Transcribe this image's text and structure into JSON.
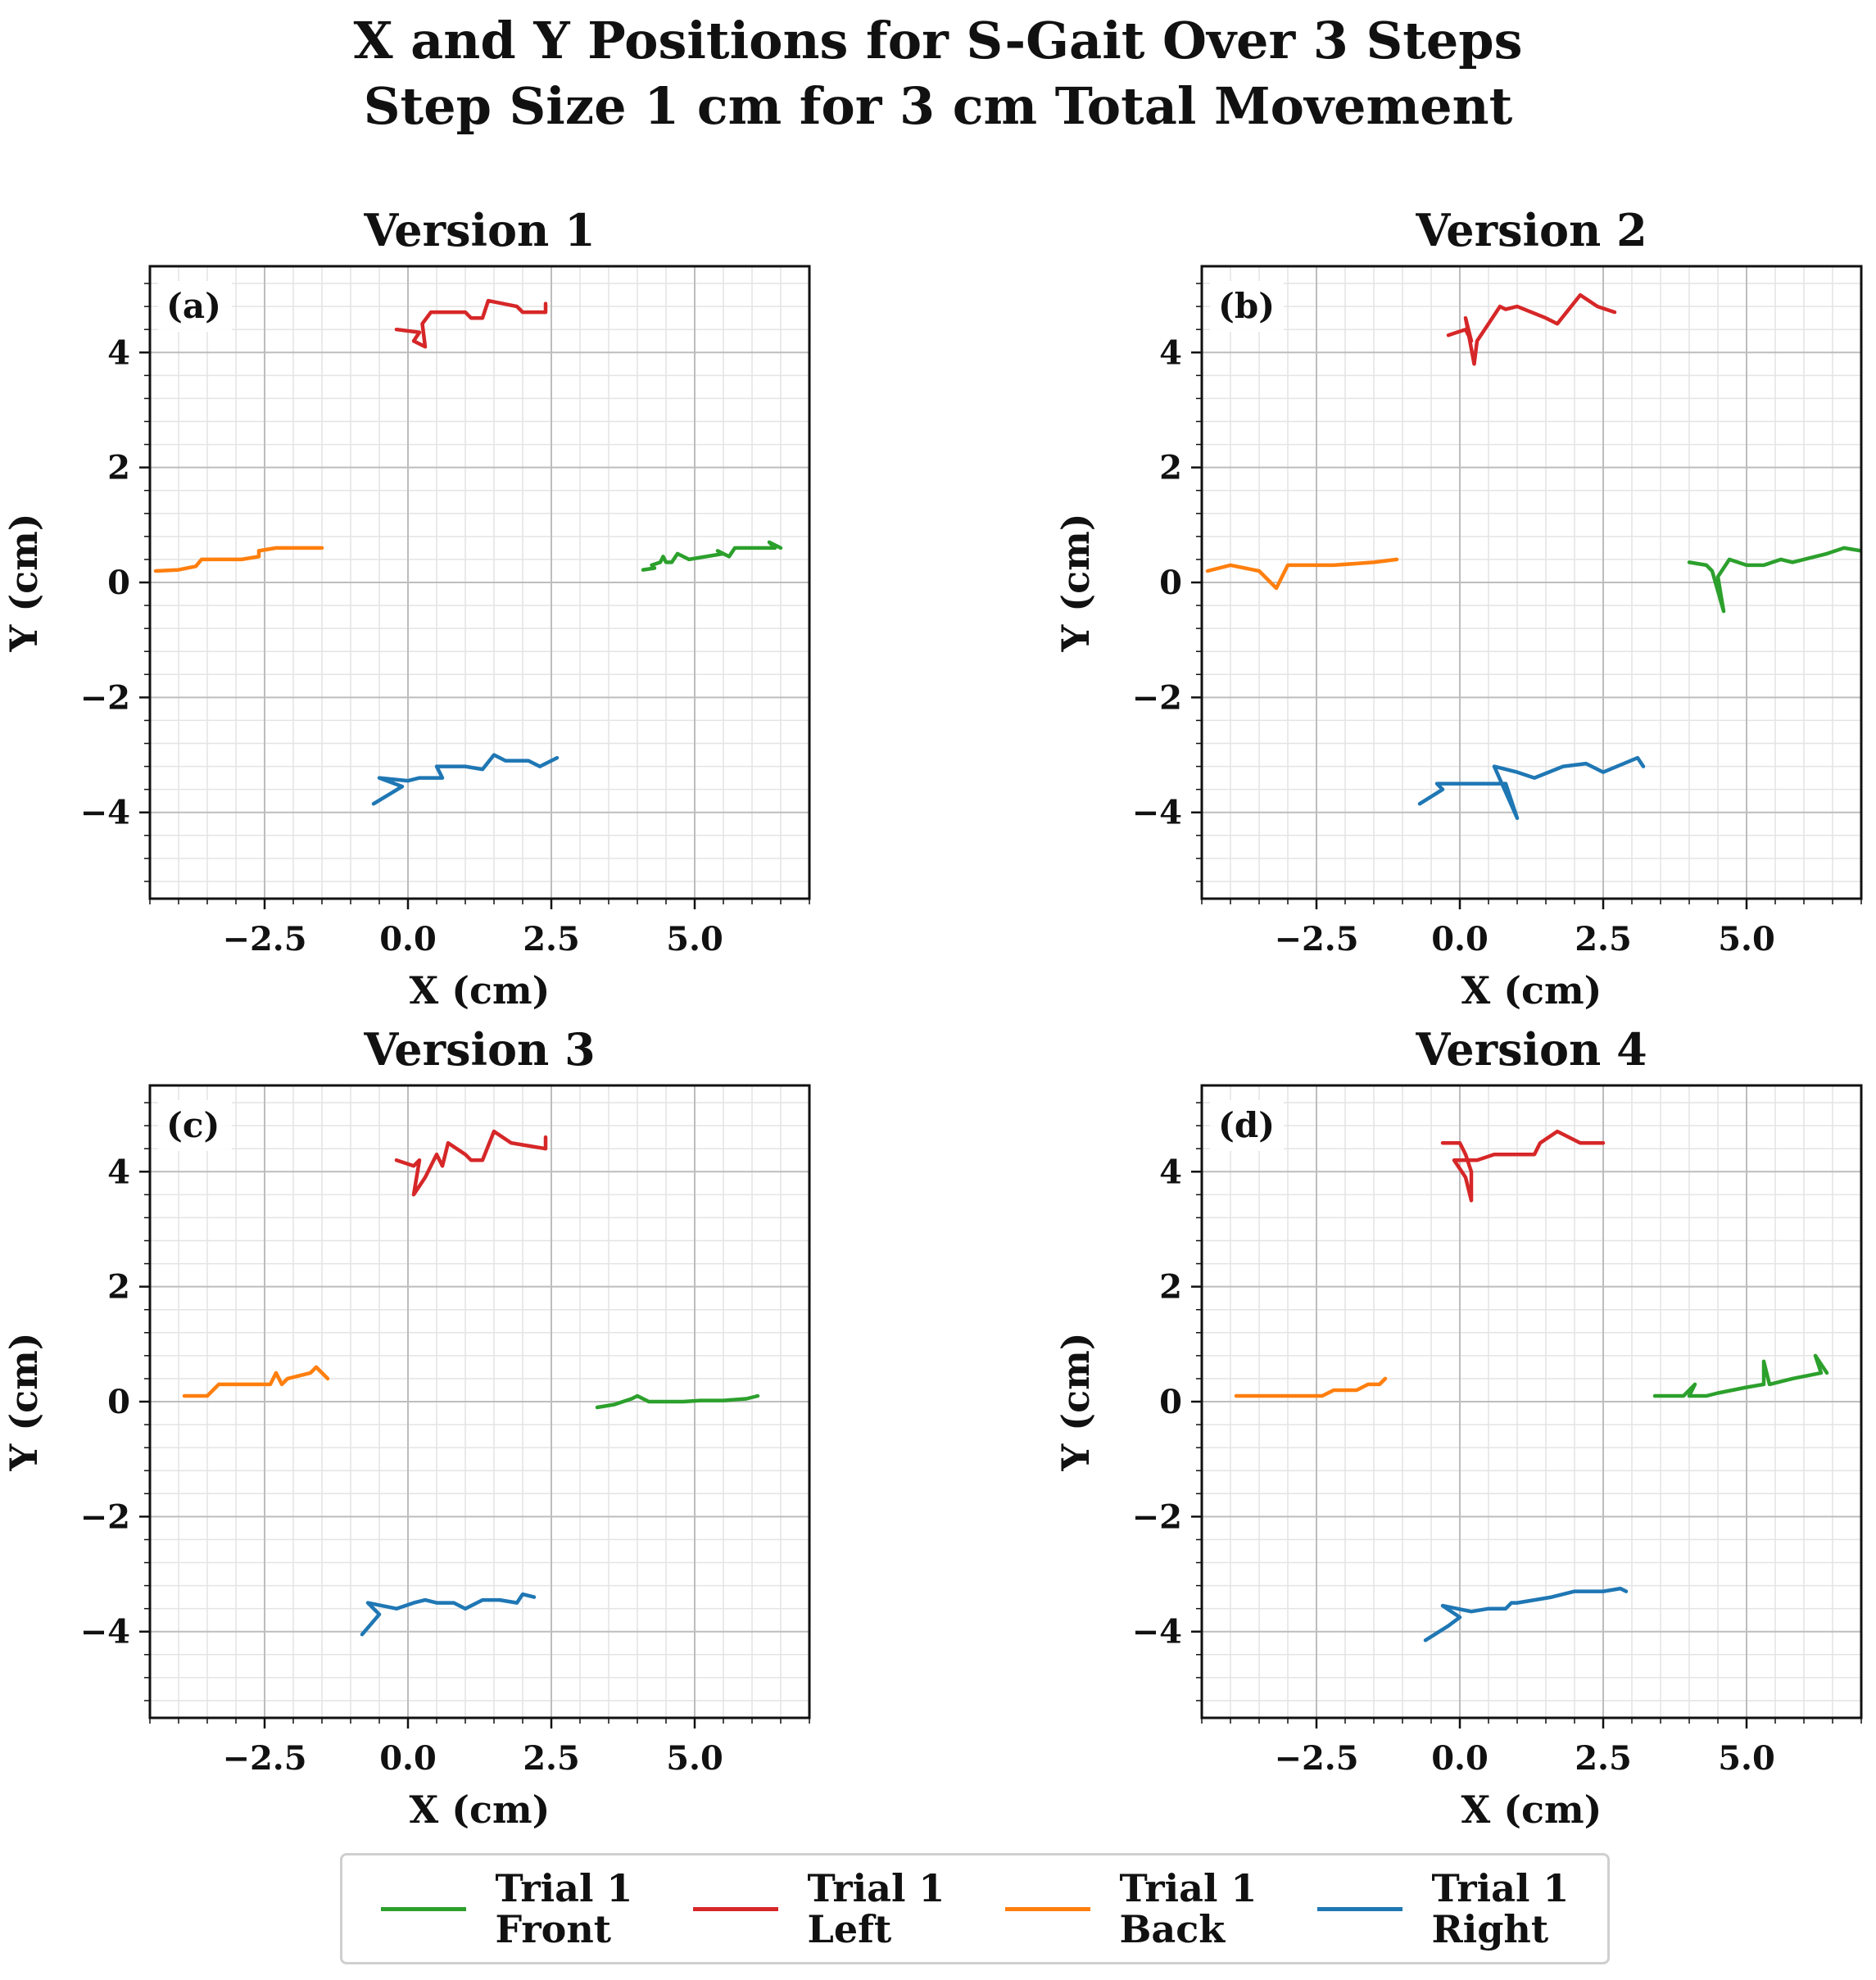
{
  "title_lines": [
    "X and Y Positions for S-Gait Over 3 Steps",
    "Step Size 1 cm for 3 cm Total Movement"
  ],
  "colors": {
    "front": "#2ca02c",
    "left": "#d62728",
    "back": "#ff7f0e",
    "right": "#1f77b4"
  },
  "legend": [
    {
      "line1": "Trial 1",
      "line2": "Front",
      "color": "#2ca02c"
    },
    {
      "line1": "Trial 1",
      "line2": "Left",
      "color": "#d62728"
    },
    {
      "line1": "Trial 1",
      "line2": "Back",
      "color": "#ff7f0e"
    },
    {
      "line1": "Trial 1",
      "line2": "Right",
      "color": "#1f77b4"
    }
  ],
  "chart_data": [
    {
      "type": "line",
      "title": "Version 1",
      "panel_label": "(a)",
      "xlabel": "X (cm)",
      "ylabel": "Y (cm)",
      "xlim": [
        -4.5,
        7.0
      ],
      "ylim": [
        -5.5,
        5.5
      ],
      "xticks": [
        -2.5,
        0.0,
        2.5,
        5.0
      ],
      "xtick_labels": [
        "−2.5",
        "0.0",
        "2.5",
        "5.0"
      ],
      "yticks": [
        -4,
        -2,
        0,
        2,
        4
      ],
      "ytick_labels": [
        "−4",
        "−2",
        "0",
        "2",
        "4"
      ],
      "grid": true,
      "series": [
        {
          "name": "Trial 1 Front",
          "color": "#2ca02c",
          "points": [
            [
              4.1,
              0.22
            ],
            [
              4.3,
              0.25
            ],
            [
              4.25,
              0.3
            ],
            [
              4.4,
              0.35
            ],
            [
              4.45,
              0.45
            ],
            [
              4.5,
              0.35
            ],
            [
              4.6,
              0.35
            ],
            [
              4.7,
              0.5
            ],
            [
              4.9,
              0.4
            ],
            [
              5.2,
              0.45
            ],
            [
              5.5,
              0.5
            ],
            [
              5.4,
              0.55
            ],
            [
              5.6,
              0.45
            ],
            [
              5.7,
              0.6
            ],
            [
              6.1,
              0.6
            ],
            [
              6.4,
              0.6
            ],
            [
              6.3,
              0.7
            ],
            [
              6.5,
              0.6
            ]
          ]
        },
        {
          "name": "Trial 1 Left",
          "color": "#d62728",
          "points": [
            [
              -0.2,
              4.4
            ],
            [
              0.2,
              4.35
            ],
            [
              0.1,
              4.2
            ],
            [
              0.3,
              4.1
            ],
            [
              0.25,
              4.5
            ],
            [
              0.4,
              4.7
            ],
            [
              1.0,
              4.7
            ],
            [
              1.1,
              4.6
            ],
            [
              1.3,
              4.6
            ],
            [
              1.4,
              4.9
            ],
            [
              1.9,
              4.8
            ],
            [
              2.0,
              4.7
            ],
            [
              2.2,
              4.7
            ],
            [
              2.4,
              4.7
            ],
            [
              2.4,
              4.85
            ]
          ]
        },
        {
          "name": "Trial 1 Back",
          "color": "#ff7f0e",
          "points": [
            [
              -4.4,
              0.2
            ],
            [
              -4.0,
              0.22
            ],
            [
              -3.7,
              0.28
            ],
            [
              -3.6,
              0.4
            ],
            [
              -3.3,
              0.4
            ],
            [
              -2.9,
              0.4
            ],
            [
              -2.6,
              0.45
            ],
            [
              -2.6,
              0.55
            ],
            [
              -2.3,
              0.6
            ],
            [
              -2.0,
              0.6
            ],
            [
              -1.5,
              0.6
            ]
          ]
        },
        {
          "name": "Trial 1 Right",
          "color": "#1f77b4",
          "points": [
            [
              -0.6,
              -3.85
            ],
            [
              -0.1,
              -3.55
            ],
            [
              -0.5,
              -3.4
            ],
            [
              0.0,
              -3.45
            ],
            [
              0.2,
              -3.4
            ],
            [
              0.6,
              -3.4
            ],
            [
              0.5,
              -3.2
            ],
            [
              0.6,
              -3.2
            ],
            [
              1.0,
              -3.2
            ],
            [
              1.3,
              -3.25
            ],
            [
              1.5,
              -3.0
            ],
            [
              1.7,
              -3.1
            ],
            [
              2.1,
              -3.1
            ],
            [
              2.3,
              -3.2
            ],
            [
              2.6,
              -3.05
            ]
          ]
        }
      ]
    },
    {
      "type": "line",
      "title": "Version 2",
      "panel_label": "(b)",
      "xlabel": "X (cm)",
      "ylabel": "Y (cm)",
      "xlim": [
        -4.5,
        7.0
      ],
      "ylim": [
        -5.5,
        5.5
      ],
      "xticks": [
        -2.5,
        0.0,
        2.5,
        5.0
      ],
      "xtick_labels": [
        "−2.5",
        "0.0",
        "2.5",
        "5.0"
      ],
      "yticks": [
        -4,
        -2,
        0,
        2,
        4
      ],
      "ytick_labels": [
        "−4",
        "−2",
        "0",
        "2",
        "4"
      ],
      "grid": true,
      "series": [
        {
          "name": "Trial 1 Front",
          "color": "#2ca02c",
          "points": [
            [
              4.0,
              0.35
            ],
            [
              4.3,
              0.3
            ],
            [
              4.4,
              0.2
            ],
            [
              4.6,
              -0.5
            ],
            [
              4.5,
              0.1
            ],
            [
              4.7,
              0.4
            ],
            [
              5.0,
              0.3
            ],
            [
              5.3,
              0.3
            ],
            [
              5.6,
              0.4
            ],
            [
              5.8,
              0.35
            ],
            [
              6.0,
              0.4
            ],
            [
              6.4,
              0.5
            ],
            [
              6.7,
              0.6
            ],
            [
              7.0,
              0.55
            ]
          ]
        },
        {
          "name": "Trial 1 Left",
          "color": "#d62728",
          "points": [
            [
              -0.2,
              4.3
            ],
            [
              0.1,
              4.4
            ],
            [
              0.2,
              4.2
            ],
            [
              0.1,
              4.6
            ],
            [
              0.25,
              3.8
            ],
            [
              0.3,
              4.2
            ],
            [
              0.5,
              4.5
            ],
            [
              0.7,
              4.8
            ],
            [
              0.8,
              4.75
            ],
            [
              1.0,
              4.8
            ],
            [
              1.5,
              4.6
            ],
            [
              1.7,
              4.5
            ],
            [
              2.1,
              5.0
            ],
            [
              2.4,
              4.8
            ],
            [
              2.7,
              4.7
            ]
          ]
        },
        {
          "name": "Trial 1 Back",
          "color": "#ff7f0e",
          "points": [
            [
              -4.4,
              0.2
            ],
            [
              -4.0,
              0.3
            ],
            [
              -3.5,
              0.2
            ],
            [
              -3.2,
              -0.1
            ],
            [
              -3.0,
              0.3
            ],
            [
              -2.7,
              0.3
            ],
            [
              -2.2,
              0.3
            ],
            [
              -1.5,
              0.35
            ],
            [
              -1.1,
              0.4
            ]
          ]
        },
        {
          "name": "Trial 1 Right",
          "color": "#1f77b4",
          "points": [
            [
              -0.7,
              -3.85
            ],
            [
              -0.3,
              -3.6
            ],
            [
              -0.4,
              -3.5
            ],
            [
              0.0,
              -3.5
            ],
            [
              0.3,
              -3.5
            ],
            [
              0.6,
              -3.5
            ],
            [
              0.8,
              -3.5
            ],
            [
              1.0,
              -4.1
            ],
            [
              0.6,
              -3.2
            ],
            [
              1.0,
              -3.3
            ],
            [
              1.3,
              -3.4
            ],
            [
              1.8,
              -3.2
            ],
            [
              2.2,
              -3.15
            ],
            [
              2.5,
              -3.3
            ],
            [
              3.1,
              -3.05
            ],
            [
              3.2,
              -3.2
            ]
          ]
        }
      ]
    },
    {
      "type": "line",
      "title": "Version 3",
      "panel_label": "(c)",
      "xlabel": "X (cm)",
      "ylabel": "Y (cm)",
      "xlim": [
        -4.5,
        7.0
      ],
      "ylim": [
        -5.5,
        5.5
      ],
      "xticks": [
        -2.5,
        0.0,
        2.5,
        5.0
      ],
      "xtick_labels": [
        "−2.5",
        "0.0",
        "2.5",
        "5.0"
      ],
      "yticks": [
        -4,
        -2,
        0,
        2,
        4
      ],
      "ytick_labels": [
        "−4",
        "−2",
        "0",
        "2",
        "4"
      ],
      "grid": true,
      "series": [
        {
          "name": "Trial 1 Front",
          "color": "#2ca02c",
          "points": [
            [
              3.3,
              -0.1
            ],
            [
              3.6,
              -0.05
            ],
            [
              3.9,
              0.05
            ],
            [
              4.0,
              0.1
            ],
            [
              4.2,
              0.0
            ],
            [
              4.4,
              0.0
            ],
            [
              4.8,
              0.0
            ],
            [
              5.1,
              0.02
            ],
            [
              5.5,
              0.02
            ],
            [
              5.9,
              0.05
            ],
            [
              6.1,
              0.1
            ]
          ]
        },
        {
          "name": "Trial 1 Left",
          "color": "#d62728",
          "points": [
            [
              -0.2,
              4.2
            ],
            [
              0.1,
              4.1
            ],
            [
              0.2,
              4.2
            ],
            [
              0.1,
              3.6
            ],
            [
              0.3,
              3.9
            ],
            [
              0.4,
              4.1
            ],
            [
              0.5,
              4.3
            ],
            [
              0.6,
              4.1
            ],
            [
              0.7,
              4.5
            ],
            [
              1.0,
              4.3
            ],
            [
              1.1,
              4.2
            ],
            [
              1.3,
              4.2
            ],
            [
              1.5,
              4.7
            ],
            [
              1.8,
              4.5
            ],
            [
              2.4,
              4.4
            ],
            [
              2.4,
              4.6
            ]
          ]
        },
        {
          "name": "Trial 1 Back",
          "color": "#ff7f0e",
          "points": [
            [
              -3.9,
              0.1
            ],
            [
              -3.5,
              0.1
            ],
            [
              -3.3,
              0.3
            ],
            [
              -2.9,
              0.3
            ],
            [
              -2.4,
              0.3
            ],
            [
              -2.3,
              0.5
            ],
            [
              -2.2,
              0.3
            ],
            [
              -2.1,
              0.4
            ],
            [
              -1.7,
              0.5
            ],
            [
              -1.6,
              0.6
            ],
            [
              -1.4,
              0.4
            ]
          ]
        },
        {
          "name": "Trial 1 Right",
          "color": "#1f77b4",
          "points": [
            [
              -0.8,
              -4.05
            ],
            [
              -0.5,
              -3.7
            ],
            [
              -0.7,
              -3.5
            ],
            [
              -0.2,
              -3.6
            ],
            [
              0.1,
              -3.5
            ],
            [
              0.3,
              -3.45
            ],
            [
              0.5,
              -3.5
            ],
            [
              0.8,
              -3.5
            ],
            [
              1.0,
              -3.6
            ],
            [
              1.3,
              -3.45
            ],
            [
              1.6,
              -3.45
            ],
            [
              1.9,
              -3.5
            ],
            [
              2.0,
              -3.35
            ],
            [
              2.2,
              -3.4
            ]
          ]
        }
      ]
    },
    {
      "type": "line",
      "title": "Version 4",
      "panel_label": "(d)",
      "xlabel": "X (cm)",
      "ylabel": "Y (cm)",
      "xlim": [
        -4.5,
        7.0
      ],
      "ylim": [
        -5.5,
        5.5
      ],
      "xticks": [
        -2.5,
        0.0,
        2.5,
        5.0
      ],
      "xtick_labels": [
        "−2.5",
        "0.0",
        "2.5",
        "5.0"
      ],
      "yticks": [
        -4,
        -2,
        0,
        2,
        4
      ],
      "ytick_labels": [
        "−4",
        "−2",
        "0",
        "2",
        "4"
      ],
      "grid": true,
      "series": [
        {
          "name": "Trial 1 Front",
          "color": "#2ca02c",
          "points": [
            [
              3.4,
              0.1
            ],
            [
              3.7,
              0.1
            ],
            [
              3.9,
              0.1
            ],
            [
              4.1,
              0.3
            ],
            [
              4.0,
              0.1
            ],
            [
              4.3,
              0.1
            ],
            [
              4.5,
              0.15
            ],
            [
              5.0,
              0.25
            ],
            [
              5.3,
              0.3
            ],
            [
              5.3,
              0.7
            ],
            [
              5.4,
              0.3
            ],
            [
              5.8,
              0.4
            ],
            [
              6.3,
              0.5
            ],
            [
              6.2,
              0.8
            ],
            [
              6.4,
              0.5
            ]
          ]
        },
        {
          "name": "Trial 1 Left",
          "color": "#d62728",
          "points": [
            [
              -0.3,
              4.5
            ],
            [
              0.0,
              4.5
            ],
            [
              0.1,
              4.3
            ],
            [
              0.2,
              4.0
            ],
            [
              0.2,
              3.5
            ],
            [
              0.1,
              3.9
            ],
            [
              -0.1,
              4.2
            ],
            [
              0.3,
              4.2
            ],
            [
              0.6,
              4.3
            ],
            [
              0.9,
              4.3
            ],
            [
              1.3,
              4.3
            ],
            [
              1.4,
              4.5
            ],
            [
              1.7,
              4.7
            ],
            [
              2.1,
              4.5
            ],
            [
              2.5,
              4.5
            ]
          ]
        },
        {
          "name": "Trial 1 Back",
          "color": "#ff7f0e",
          "points": [
            [
              -3.9,
              0.1
            ],
            [
              -3.5,
              0.1
            ],
            [
              -2.9,
              0.1
            ],
            [
              -2.4,
              0.1
            ],
            [
              -2.2,
              0.2
            ],
            [
              -1.8,
              0.2
            ],
            [
              -1.6,
              0.3
            ],
            [
              -1.4,
              0.3
            ],
            [
              -1.3,
              0.4
            ]
          ]
        },
        {
          "name": "Trial 1 Right",
          "color": "#1f77b4",
          "points": [
            [
              -0.6,
              -4.15
            ],
            [
              -0.2,
              -3.9
            ],
            [
              0.0,
              -3.75
            ],
            [
              -0.3,
              -3.55
            ],
            [
              0.2,
              -3.65
            ],
            [
              0.5,
              -3.6
            ],
            [
              0.8,
              -3.6
            ],
            [
              0.9,
              -3.5
            ],
            [
              1.0,
              -3.5
            ],
            [
              1.3,
              -3.45
            ],
            [
              1.6,
              -3.4
            ],
            [
              2.0,
              -3.3
            ],
            [
              2.5,
              -3.3
            ],
            [
              2.8,
              -3.25
            ],
            [
              2.9,
              -3.3
            ]
          ]
        }
      ]
    }
  ]
}
